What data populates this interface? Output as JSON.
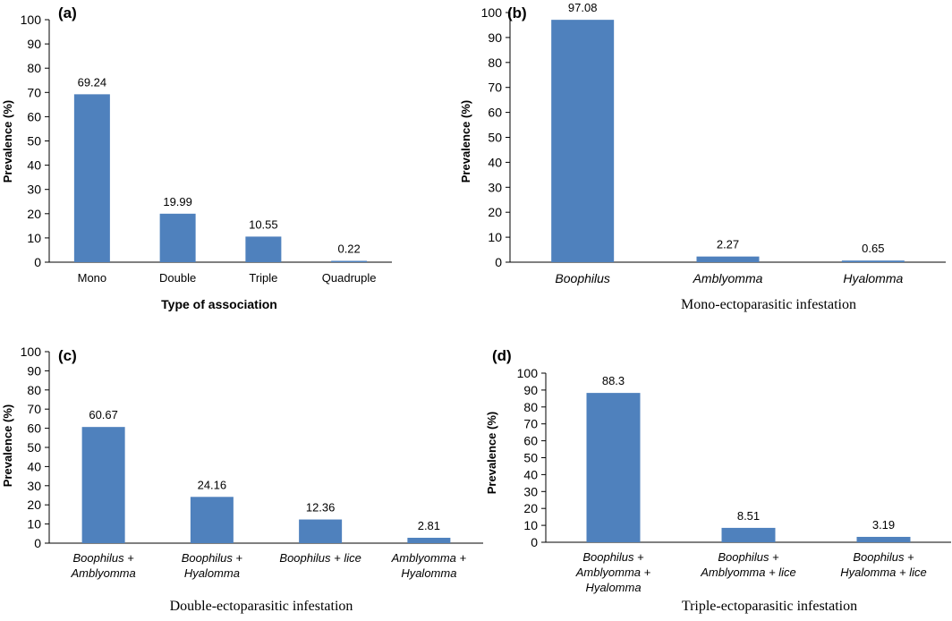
{
  "chart_data": [
    {
      "panel_label": "(a)",
      "type": "bar",
      "categories": [
        "Mono",
        "Double",
        "Triple",
        "Quadruple"
      ],
      "values": [
        69.24,
        19.99,
        10.55,
        0.22
      ],
      "value_labels": [
        "69.24",
        "19.99",
        "10.55",
        "0.22"
      ],
      "xlabel": "Type of association",
      "ylabel": "Prevalence (%)",
      "ylim": [
        0,
        100
      ],
      "yticks": [
        0,
        10,
        20,
        30,
        40,
        50,
        60,
        70,
        80,
        90,
        100
      ],
      "italic_categories": false,
      "grid": false,
      "bar_color": "#4f81bd"
    },
    {
      "panel_label": "(b)",
      "type": "bar",
      "categories": [
        "Boophilus",
        "Amblyomma",
        "Hyalomma"
      ],
      "values": [
        97.08,
        2.27,
        0.65
      ],
      "value_labels": [
        "97.08",
        "2.27",
        "0.65"
      ],
      "xlabel": "Mono-ectoparasitic infestation",
      "ylabel": "Prevalence (%)",
      "ylim": [
        0,
        100
      ],
      "yticks": [
        0,
        10,
        20,
        30,
        40,
        50,
        60,
        70,
        80,
        90,
        100
      ],
      "italic_categories": true,
      "grid": false,
      "bar_color": "#4f81bd"
    },
    {
      "panel_label": "(c)",
      "type": "bar",
      "categories": [
        "Boophilus + Amblyomma",
        "Boophilus + Hyalomma",
        "Boophilus + lice",
        "Amblyomma + Hyalomma"
      ],
      "values": [
        60.67,
        24.16,
        12.36,
        2.81
      ],
      "value_labels": [
        "60.67",
        "24.16",
        "12.36",
        "2.81"
      ],
      "xlabel": "Double-ectoparasitic infestation",
      "ylabel": "Prevalence (%)",
      "ylim": [
        0,
        100
      ],
      "yticks": [
        0,
        10,
        20,
        30,
        40,
        50,
        60,
        70,
        80,
        90,
        100
      ],
      "italic_categories": true,
      "grid": false,
      "bar_color": "#4f81bd"
    },
    {
      "panel_label": "(d)",
      "type": "bar",
      "categories": [
        "Boophilus + Amblyomma + Hyalomma",
        "Boophilus + Amblyomma + lice",
        "Boophilus + Hyalomma + lice"
      ],
      "values": [
        88.3,
        8.51,
        3.19
      ],
      "value_labels": [
        "88.3",
        "8.51",
        "3.19"
      ],
      "xlabel": "Triple-ectoparasitic infestation",
      "ylabel": "Prevalence (%)",
      "ylim": [
        0,
        100
      ],
      "yticks": [
        0,
        10,
        20,
        30,
        40,
        50,
        60,
        70,
        80,
        90,
        100
      ],
      "italic_categories": true,
      "grid": false,
      "bar_color": "#4f81bd"
    }
  ]
}
